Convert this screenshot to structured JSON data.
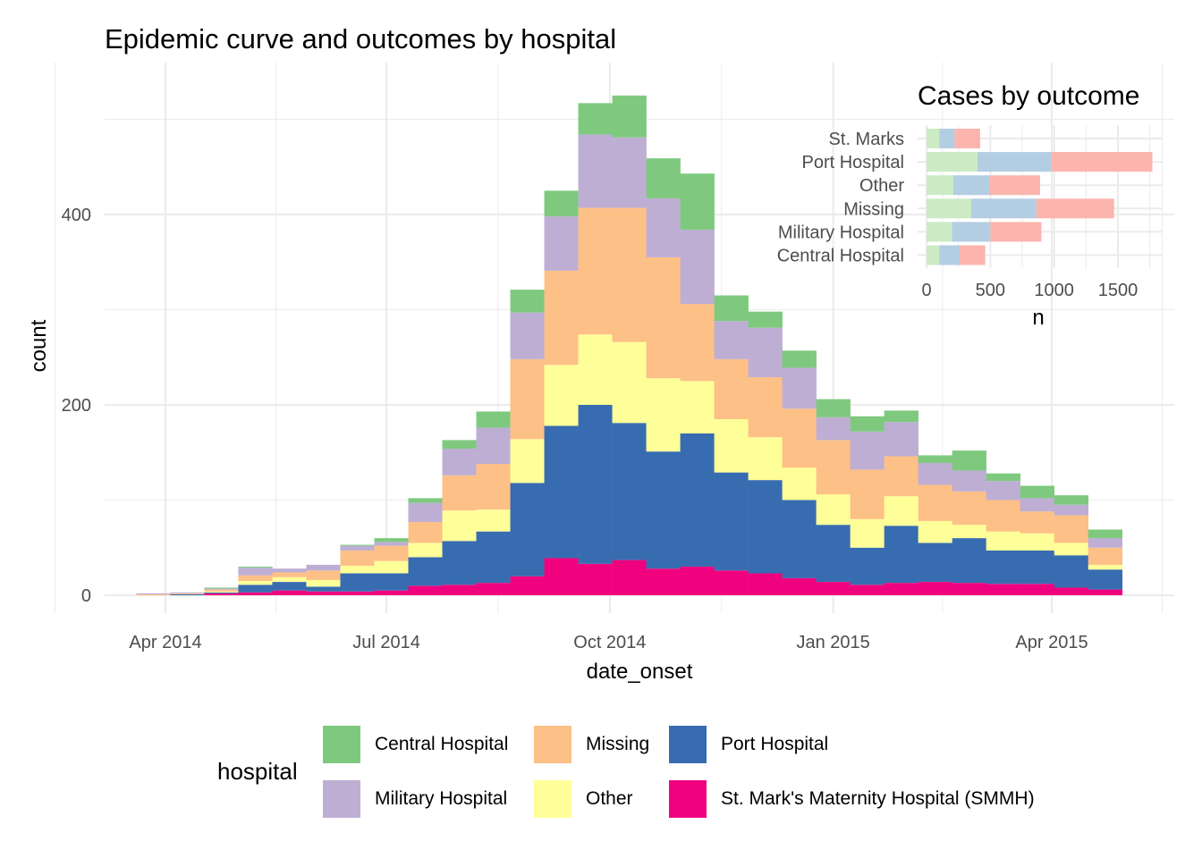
{
  "chart_data": [
    {
      "type": "bar",
      "stacked": true,
      "title": "Epidemic curve and outcomes by hospital",
      "xlabel": "date_onset",
      "ylabel": "count",
      "ylim": [
        0,
        520
      ],
      "yticks": [
        0,
        200,
        400
      ],
      "xticks": [
        {
          "label": "Apr 2014",
          "date": "2014-04-01"
        },
        {
          "label": "Jul 2014",
          "date": "2014-07-01"
        },
        {
          "label": "Oct 2014",
          "date": "2014-10-01"
        },
        {
          "label": "Jan 2015",
          "date": "2015-01-01"
        },
        {
          "label": "Apr 2015",
          "date": "2015-04-01"
        }
      ],
      "bin_width_days": 14,
      "bin_starts": [
        "2014-03-20",
        "2014-04-03",
        "2014-04-17",
        "2014-05-01",
        "2014-05-15",
        "2014-05-29",
        "2014-06-12",
        "2014-06-26",
        "2014-07-10",
        "2014-07-24",
        "2014-08-07",
        "2014-08-21",
        "2014-09-04",
        "2014-09-18",
        "2014-10-02",
        "2014-10-16",
        "2014-10-30",
        "2014-11-13",
        "2014-11-27",
        "2014-12-11",
        "2014-12-25",
        "2015-01-08",
        "2015-01-22",
        "2015-02-05",
        "2015-02-19",
        "2015-03-05",
        "2015-03-19",
        "2015-04-02",
        "2015-04-16"
      ],
      "series": [
        {
          "name": "St. Mark's Maternity Hospital (SMMH)",
          "color": "#f0027f",
          "values": [
            0,
            0,
            2,
            3,
            5,
            4,
            4,
            5,
            10,
            11,
            13,
            20,
            39,
            33,
            37,
            28,
            30,
            26,
            23,
            18,
            14,
            11,
            13,
            14,
            13,
            12,
            12,
            8,
            6
          ]
        },
        {
          "name": "Port Hospital",
          "color": "#386cb0",
          "values": [
            0,
            1,
            1,
            8,
            9,
            5,
            19,
            18,
            30,
            46,
            54,
            98,
            139,
            167,
            144,
            123,
            140,
            103,
            98,
            82,
            60,
            39,
            60,
            41,
            47,
            35,
            35,
            34,
            21
          ]
        },
        {
          "name": "Other",
          "color": "#ffff99",
          "values": [
            0,
            0,
            1,
            4,
            5,
            7,
            8,
            13,
            15,
            32,
            23,
            46,
            64,
            74,
            85,
            77,
            55,
            56,
            45,
            34,
            32,
            30,
            31,
            23,
            14,
            20,
            18,
            13,
            5
          ]
        },
        {
          "name": "Missing",
          "color": "#fdc086",
          "values": [
            1,
            1,
            2,
            6,
            5,
            10,
            16,
            16,
            22,
            37,
            48,
            84,
            99,
            133,
            141,
            127,
            81,
            63,
            63,
            62,
            57,
            52,
            42,
            38,
            35,
            33,
            23,
            29,
            18
          ]
        },
        {
          "name": "Military Hospital",
          "color": "#beaed4",
          "values": [
            1,
            1,
            1,
            8,
            4,
            6,
            5,
            4,
            20,
            28,
            38,
            49,
            57,
            77,
            74,
            62,
            78,
            40,
            52,
            43,
            24,
            40,
            36,
            23,
            22,
            20,
            14,
            11,
            10
          ]
        },
        {
          "name": "Central Hospital",
          "color": "#7fc97f",
          "values": [
            0,
            0,
            1,
            1,
            0,
            0,
            1,
            4,
            5,
            9,
            17,
            24,
            27,
            33,
            44,
            42,
            59,
            27,
            17,
            18,
            19,
            16,
            12,
            8,
            21,
            8,
            13,
            10,
            9
          ]
        }
      ],
      "legend": {
        "title": "hospital",
        "placement": "bottom",
        "items": [
          "Central Hospital",
          "Missing",
          "Port Hospital",
          "Military Hospital",
          "Other",
          "St. Mark's Maternity Hospital (SMMH)"
        ]
      }
    },
    {
      "type": "bar",
      "orientation": "horizontal",
      "stacked": true,
      "title": "Cases by outcome",
      "xlabel": "n",
      "ylabel": "",
      "xlim": [
        0,
        1800
      ],
      "xticks": [
        0,
        500,
        1000,
        1500
      ],
      "categories": [
        "St. Marks",
        "Port Hospital",
        "Other",
        "Missing",
        "Military Hospital",
        "Central Hospital"
      ],
      "series": [
        {
          "name": "segment-1",
          "color": "#ccebc5",
          "values": [
            100,
            400,
            210,
            350,
            200,
            100
          ]
        },
        {
          "name": "segment-2",
          "color": "#b3cde3",
          "values": [
            120,
            580,
            280,
            510,
            300,
            160
          ]
        },
        {
          "name": "segment-3",
          "color": "#fbb4ae",
          "values": [
            200,
            790,
            400,
            610,
            400,
            200
          ]
        }
      ]
    }
  ]
}
